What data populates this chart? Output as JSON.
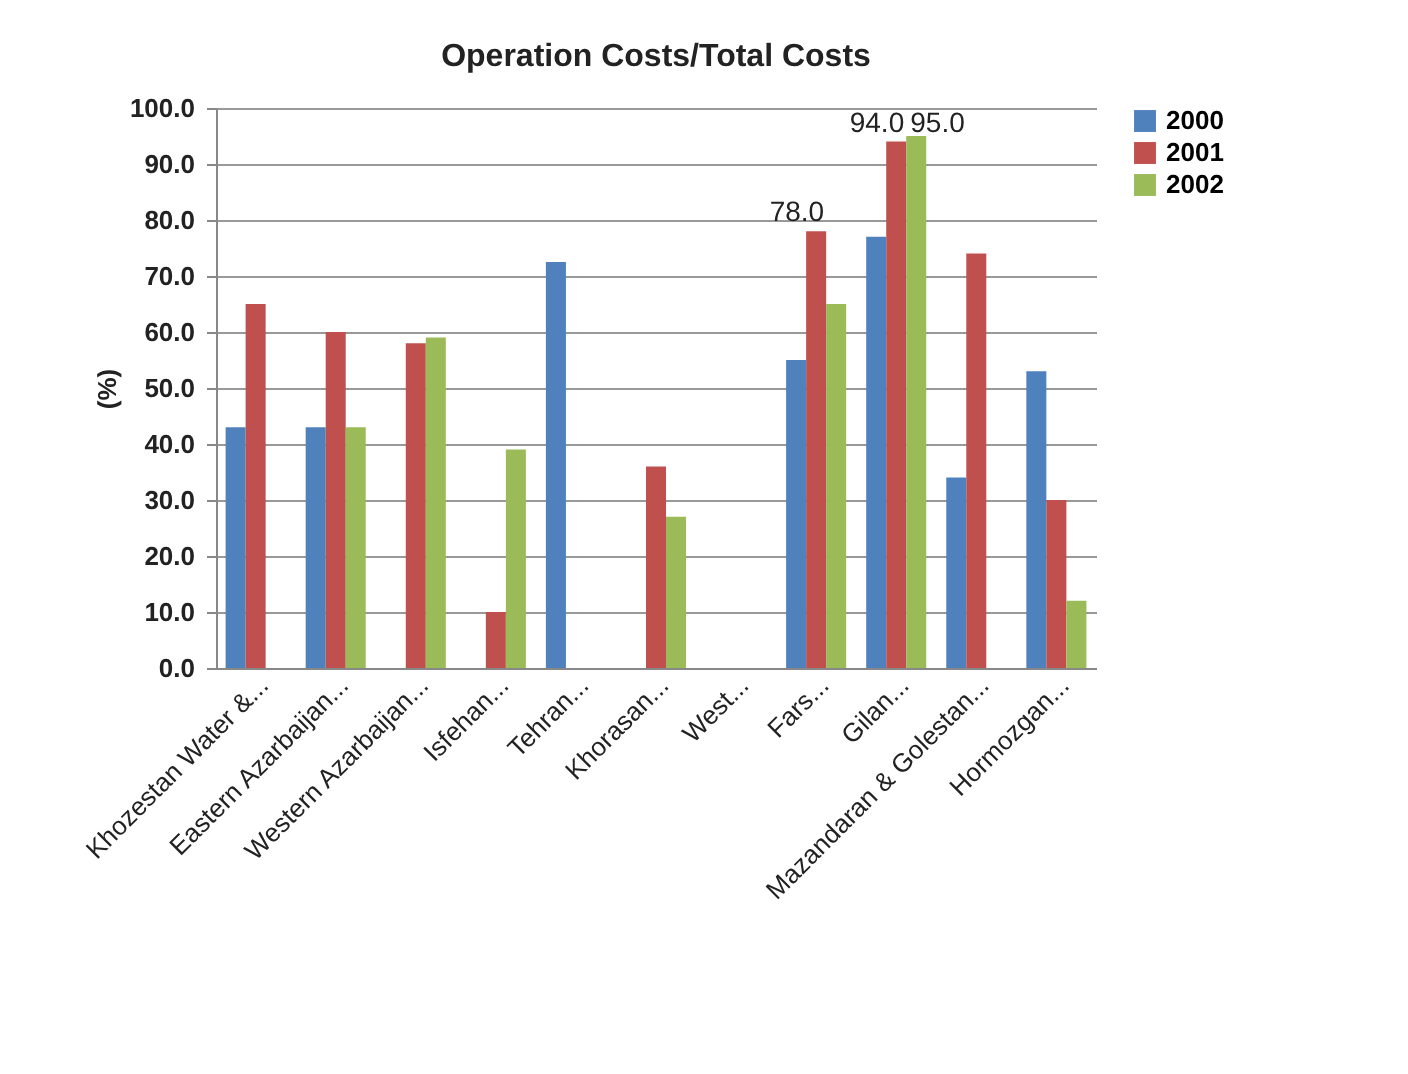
{
  "chart_data": {
    "type": "bar",
    "title": "Operation Costs/Total Costs",
    "ylabel": "(%)",
    "categories": [
      "Khozestan Water &...",
      "Eastern Azarbaijan...",
      "Western Azarbaijan...",
      "Isfehan...",
      "Tehran...",
      "Khorasan...",
      "West...",
      "Fars...",
      "Gilan...",
      "Mazandaran & Golestan...",
      "Hormozgan..."
    ],
    "series": [
      {
        "name": "2000",
        "color": "#4f81bd",
        "values": [
          43,
          43,
          0,
          0,
          72.5,
          0,
          0,
          55,
          77,
          34,
          53
        ]
      },
      {
        "name": "2001",
        "color": "#c0504d",
        "values": [
          65,
          60,
          58,
          10,
          0,
          36,
          0,
          78,
          94,
          74,
          30
        ],
        "value_labels": [
          null,
          null,
          null,
          null,
          null,
          null,
          null,
          "78.0",
          "94.0",
          null,
          null
        ]
      },
      {
        "name": "2002",
        "color": "#9bbb59",
        "values": [
          0,
          43,
          59,
          39,
          0,
          27,
          0,
          65,
          95,
          0,
          12
        ],
        "value_labels": [
          null,
          null,
          null,
          null,
          null,
          null,
          null,
          null,
          "95.0",
          null,
          null
        ]
      }
    ],
    "ylim": [
      0,
      100
    ],
    "yticks": [
      {
        "value": 0,
        "label": "0.0"
      },
      {
        "value": 10,
        "label": "10.0"
      },
      {
        "value": 20,
        "label": "20.0"
      },
      {
        "value": 30,
        "label": "30.0"
      },
      {
        "value": 40,
        "label": "40.0"
      },
      {
        "value": 50,
        "label": "50.0"
      },
      {
        "value": 60,
        "label": "60.0"
      },
      {
        "value": 70,
        "label": "70.0"
      },
      {
        "value": 80,
        "label": "80.0"
      },
      {
        "value": 90,
        "label": "90.0"
      },
      {
        "value": 100,
        "label": "100.0"
      }
    ],
    "grid": "y",
    "legend": "right"
  }
}
